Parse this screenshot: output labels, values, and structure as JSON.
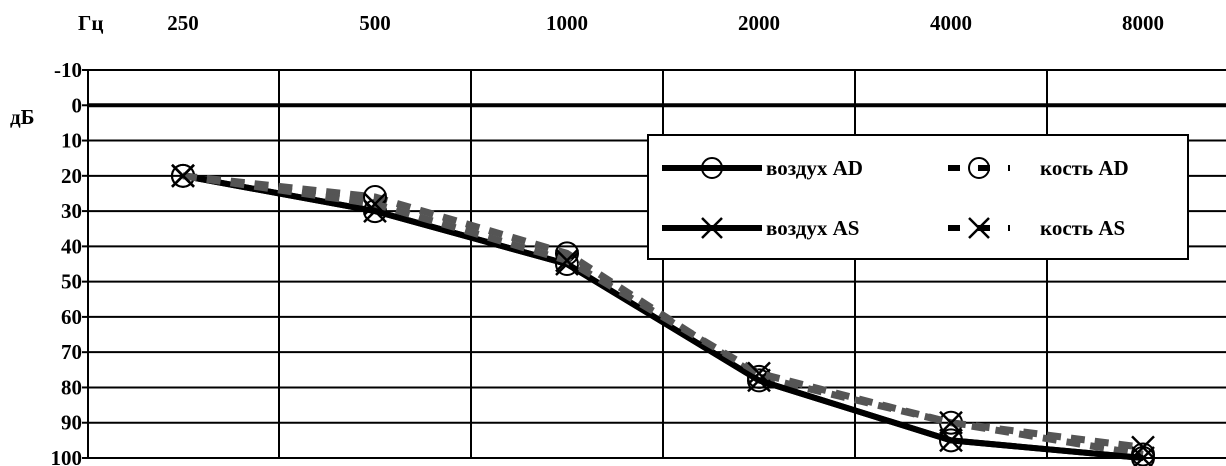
{
  "chart_data": {
    "type": "line",
    "x_unit_label": "Гц",
    "y_unit_label": "дБ",
    "x": [
      250,
      500,
      1000,
      2000,
      4000,
      8000
    ],
    "x_tick_labels": [
      "250",
      "500",
      "1000",
      "2000",
      "4000",
      "8000"
    ],
    "x_scale": "log2",
    "y_ticks": [
      -10,
      0,
      10,
      20,
      30,
      40,
      50,
      60,
      70,
      80,
      90,
      100
    ],
    "y_tick_labels": [
      "-10",
      "0",
      "10",
      "20",
      "30",
      "40",
      "50",
      "60",
      "70",
      "80",
      "90",
      "100"
    ],
    "ylim": [
      -10,
      100
    ],
    "y_inverted": true,
    "grid": true,
    "legend_position": "top-right",
    "series": [
      {
        "name": "воздух AD",
        "line": "solid",
        "marker": "circle",
        "values": [
          20,
          30,
          45,
          78,
          95,
          100
        ]
      },
      {
        "name": "кость AD",
        "line": "dashed",
        "marker": "circle",
        "values": [
          20,
          26,
          42,
          77,
          90,
          99
        ]
      },
      {
        "name": "воздух AS",
        "line": "solid",
        "marker": "x",
        "values": [
          20,
          30,
          45,
          78,
          95,
          100
        ]
      },
      {
        "name": "кость AS",
        "line": "dashed",
        "marker": "x",
        "values": [
          20,
          28,
          44,
          76,
          90,
          97
        ]
      }
    ]
  }
}
